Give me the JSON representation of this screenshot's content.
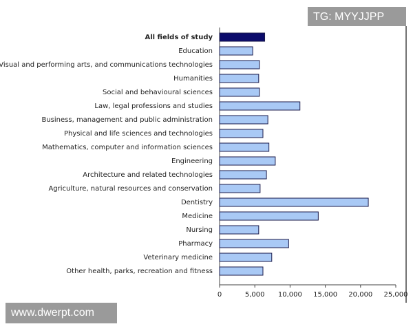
{
  "chart_data": {
    "type": "hbar",
    "categories": [
      "All fields of study",
      "Education",
      "Visual and performing arts, and communications technologies",
      "Humanities",
      "Social and behavioural sciences",
      "Law, legal professions and studies",
      "Business, management and public administration",
      "Physical and life sciences and technologies",
      "Mathematics, computer and information sciences",
      "Engineering",
      "Architecture and related technologies",
      "Agriculture, natural resources and conservation",
      "Dentistry",
      "Medicine",
      "Nursing",
      "Pharmacy",
      "Veterinary medicine",
      "Other health, parks, recreation and fitness"
    ],
    "values": [
      6400,
      4700,
      5650,
      5550,
      5650,
      11400,
      6850,
      6150,
      7000,
      7900,
      6650,
      5750,
      21100,
      14000,
      5550,
      9800,
      7400,
      6150
    ],
    "colors": [
      "#0b0b6b",
      "#a9c9f5",
      "#a9c9f5",
      "#a9c9f5",
      "#a9c9f5",
      "#a9c9f5",
      "#a9c9f5",
      "#a9c9f5",
      "#a9c9f5",
      "#a9c9f5",
      "#a9c9f5",
      "#a9c9f5",
      "#a9c9f5",
      "#a9c9f5",
      "#a9c9f5",
      "#a9c9f5",
      "#a9c9f5",
      "#a9c9f5"
    ],
    "xlim": [
      0,
      25000
    ],
    "xticks": [
      0,
      {
        "value": 5000,
        "label": "5,000"
      },
      {
        "value": 10000,
        "label": "10,000"
      },
      {
        "value": 15000,
        "label": "15,000"
      },
      {
        "value": 20000,
        "label": "20,000"
      },
      {
        "value": 25000,
        "label": "25,000"
      }
    ]
  },
  "watermarks": [
    "TG: MYYJJPP",
    "www.dwerpt.com"
  ]
}
